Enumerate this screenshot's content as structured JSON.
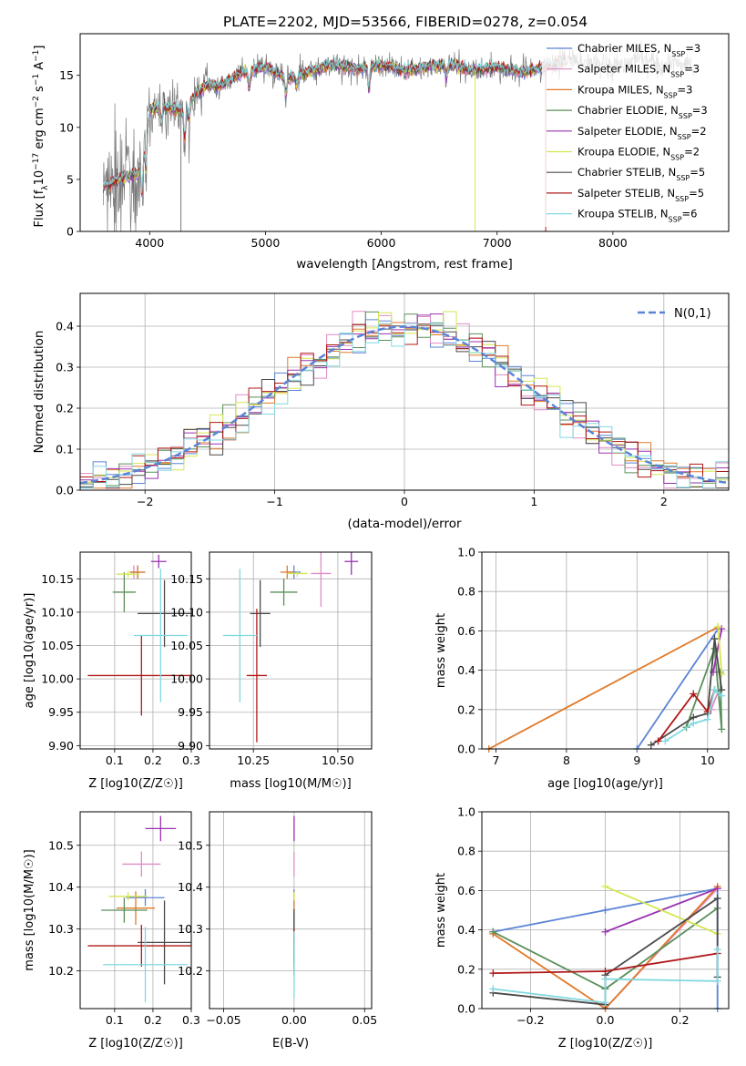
{
  "title": "PLATE=2202, MJD=53566, FIBERID=0278, z=0.054",
  "series_styles": [
    {
      "name": "Chabrier MILES",
      "nssp": "3",
      "color": "#5b84d6"
    },
    {
      "name": "Salpeter MILES",
      "nssp": "3",
      "color": "#e08cc4"
    },
    {
      "name": "Kroupa MILES",
      "nssp": "3",
      "color": "#e07a2a"
    },
    {
      "name": "Chabrier ELODIE",
      "nssp": "3",
      "color": "#5a8f5a"
    },
    {
      "name": "Salpeter ELODIE",
      "nssp": "2",
      "color": "#9a32b0"
    },
    {
      "name": "Kroupa ELODIE",
      "nssp": "2",
      "color": "#d6e650"
    },
    {
      "name": "Chabrier STELIB",
      "nssp": "5",
      "color": "#4a4a4a"
    },
    {
      "name": "Salpeter STELIB",
      "nssp": "5",
      "color": "#b01818"
    },
    {
      "name": "Kroupa STELIB",
      "nssp": "6",
      "color": "#80d8e0"
    }
  ],
  "chart_data": [
    {
      "id": "spectrum",
      "type": "line",
      "xlabel": "wavelength [Angstrom, rest frame]",
      "ylabel": "Flux [f_λ 10^-17 erg cm^-2 s^-1 A^-1]",
      "xlim": [
        3400,
        9000
      ],
      "ylim": [
        0,
        19
      ],
      "xticks": [
        4000,
        5000,
        6000,
        7000,
        8000
      ],
      "yticks": [
        0,
        5,
        10,
        15
      ],
      "data_color": "#777777",
      "data_xrange": [
        3600,
        8700
      ],
      "continuum": {
        "x": [
          3600,
          3700,
          3800,
          3900,
          3950,
          4000,
          4100,
          4200,
          4300,
          4400,
          4500,
          4600,
          4800,
          5000,
          5200,
          5400,
          5600,
          5800,
          6000,
          6200,
          6400,
          6600,
          6800,
          7000,
          7200,
          7400,
          7600,
          7800,
          8000,
          8200,
          8400,
          8600,
          8700
        ],
        "y": [
          4.2,
          4.8,
          5.3,
          5.6,
          7.8,
          11.6,
          12.0,
          11.8,
          11.4,
          13.3,
          14.1,
          13.9,
          15.2,
          15.8,
          14.6,
          15.5,
          16.0,
          15.6,
          16.0,
          15.5,
          15.8,
          16.0,
          15.4,
          15.8,
          15.3,
          15.7,
          16.4,
          16.2,
          15.8,
          16.6,
          16.2,
          16.0,
          15.8
        ]
      },
      "model_xrange": [
        3600,
        7600
      ],
      "absorption_features": [
        {
          "x": 3934,
          "depth": 4.0
        },
        {
          "x": 3969,
          "depth": 3.5
        },
        {
          "x": 4102,
          "depth": 1.5
        },
        {
          "x": 4304,
          "depth": 2.8
        },
        {
          "x": 4341,
          "depth": 1.5
        },
        {
          "x": 4861,
          "depth": 1.7
        },
        {
          "x": 5175,
          "depth": 1.8
        },
        {
          "x": 5270,
          "depth": 1.0
        },
        {
          "x": 5893,
          "depth": 2.5
        },
        {
          "x": 6563,
          "depth": 1.2
        }
      ],
      "data_gaps": [
        {
          "x": 4270,
          "floor": 0
        },
        {
          "x": 6810,
          "floor": 0,
          "color": "#d6e650"
        },
        {
          "x": 7420,
          "floor": 0,
          "color": "#b01818"
        }
      ]
    },
    {
      "id": "residuals",
      "type": "histogram",
      "xlabel": "(data-model)/error",
      "ylabel": "Normed distribution",
      "xlim": [
        -2.5,
        2.5
      ],
      "ylim": [
        0,
        0.48
      ],
      "xticks": [
        -2,
        -1,
        0,
        1,
        2
      ],
      "yticks": [
        0.0,
        0.1,
        0.2,
        0.3,
        0.4
      ],
      "legend": "N(0,1)",
      "bin_width": 0.1,
      "reference": {
        "type": "gaussian",
        "mean": 0,
        "sigma": 1,
        "color": "#5b84d6"
      }
    },
    {
      "id": "age-vs-Z",
      "type": "errorbar",
      "xlabel": "Z [log10(Z/Z☉)]",
      "ylabel": "age [log10(age/yr)]",
      "xlim": [
        0.01,
        0.3
      ],
      "ylim": [
        9.895,
        10.19
      ],
      "xticks": [
        0.1,
        0.2,
        0.3
      ],
      "yticks": [
        9.9,
        9.95,
        10.0,
        10.05,
        10.1,
        10.15
      ],
      "points": [
        {
          "x": 0.16,
          "y": 10.16,
          "xerr": 0.02,
          "yerr": 0.01
        },
        {
          "x": 0.15,
          "y": 10.16,
          "xerr": 0.01,
          "yerr": 0.01
        },
        {
          "x": 0.16,
          "y": 10.16,
          "xerr": 0.02,
          "yerr": 0.01
        },
        {
          "x": 0.125,
          "y": 10.13,
          "xerr": 0.03,
          "yerr": 0.03
        },
        {
          "x": 0.215,
          "y": 10.176,
          "xerr": 0.02,
          "yerr": 0.01
        },
        {
          "x": 0.135,
          "y": 10.157,
          "xerr": 0.03,
          "yerr": 0.005
        },
        {
          "x": 0.23,
          "y": 10.098,
          "xerr": 0.07,
          "yerr": 0.05
        },
        {
          "x": 0.17,
          "y": 10.005,
          "xerr": 0.14,
          "yerr": 0.06
        },
        {
          "x": 0.22,
          "y": 10.065,
          "xerr": 0.07,
          "yerr": 0.1
        }
      ]
    },
    {
      "id": "age-vs-mass",
      "type": "errorbar",
      "xlabel": "mass [log10(M/M☉)]",
      "ylabel": "",
      "xlim": [
        10.12,
        10.6
      ],
      "ylim": [
        9.895,
        10.19
      ],
      "xticks": [
        10.25,
        10.5
      ],
      "yticks": [
        9.9,
        9.95,
        10.0,
        10.05,
        10.1,
        10.15
      ],
      "points": [
        {
          "x": 10.37,
          "y": 10.16,
          "xerr": 0.02,
          "yerr": 0.01
        },
        {
          "x": 10.45,
          "y": 10.158,
          "xerr": 0.03,
          "yerr": 0.05
        },
        {
          "x": 10.35,
          "y": 10.16,
          "xerr": 0.02,
          "yerr": 0.01
        },
        {
          "x": 10.34,
          "y": 10.13,
          "xerr": 0.04,
          "yerr": 0.02
        },
        {
          "x": 10.54,
          "y": 10.176,
          "xerr": 0.02,
          "yerr": 0.02
        },
        {
          "x": 10.38,
          "y": 10.158,
          "xerr": 0.03,
          "yerr": 0.005
        },
        {
          "x": 10.27,
          "y": 10.098,
          "xerr": 0.03,
          "yerr": 0.05
        },
        {
          "x": 10.26,
          "y": 10.005,
          "xerr": 0.03,
          "yerr": 0.1
        },
        {
          "x": 10.21,
          "y": 10.065,
          "xerr": 0.05,
          "yerr": 0.1
        }
      ]
    },
    {
      "id": "weight-vs-age",
      "type": "line",
      "xlabel": "age [log10(age/yr)]",
      "ylabel": "mass weight",
      "xlim": [
        6.8,
        10.3
      ],
      "ylim": [
        0,
        1.0
      ],
      "xticks": [
        7,
        8,
        9,
        10
      ],
      "yticks": [
        0.0,
        0.2,
        0.4,
        0.6,
        0.8,
        1.0
      ],
      "series": [
        {
          "x": [
            9.0,
            10.15
          ],
          "y": [
            0.0,
            0.61
          ]
        },
        {
          "x": [
            10.05,
            10.15
          ],
          "y": [
            0.2,
            0.29
          ]
        },
        {
          "x": [
            6.9,
            10.15
          ],
          "y": [
            0.0,
            0.62
          ]
        },
        {
          "x": [
            9.7,
            10.1,
            10.2,
            10.18
          ],
          "y": [
            0.11,
            0.51,
            0.1,
            0.39
          ]
        },
        {
          "x": [
            10.08,
            10.2
          ],
          "y": [
            0.39,
            0.61
          ]
        },
        {
          "x": [
            10.15,
            10.2
          ],
          "y": [
            0.62,
            0.38
          ]
        },
        {
          "x": [
            9.2,
            9.8,
            10.0,
            10.1,
            10.2
          ],
          "y": [
            0.02,
            0.16,
            0.18,
            0.56,
            0.3
          ]
        },
        {
          "x": [
            9.3,
            9.8,
            10.0,
            10.1
          ],
          "y": [
            0.04,
            0.28,
            0.19,
            0.3
          ]
        },
        {
          "x": [
            9.4,
            9.8,
            10.0,
            10.1,
            10.2
          ],
          "y": [
            0.04,
            0.13,
            0.15,
            0.3,
            0.27
          ]
        }
      ]
    },
    {
      "id": "mass-vs-Z",
      "type": "errorbar",
      "xlabel": "Z [log10(Z/Z☉)]",
      "ylabel": "mass [log10(M/M☉)]",
      "xlim": [
        0.01,
        0.3
      ],
      "ylim": [
        10.11,
        10.58
      ],
      "xticks": [
        0.1,
        0.2,
        0.3
      ],
      "yticks": [
        10.2,
        10.3,
        10.4,
        10.5
      ],
      "points": [
        {
          "x": 0.18,
          "y": 10.375,
          "xerr": 0.05,
          "yerr": 0.02
        },
        {
          "x": 0.17,
          "y": 10.455,
          "xerr": 0.05,
          "yerr": 0.03
        },
        {
          "x": 0.155,
          "y": 10.35,
          "xerr": 0.05,
          "yerr": 0.04
        },
        {
          "x": 0.125,
          "y": 10.345,
          "xerr": 0.06,
          "yerr": 0.03
        },
        {
          "x": 0.22,
          "y": 10.54,
          "xerr": 0.04,
          "yerr": 0.03
        },
        {
          "x": 0.135,
          "y": 10.378,
          "xerr": 0.05,
          "yerr": 0.01
        },
        {
          "x": 0.23,
          "y": 10.268,
          "xerr": 0.07,
          "yerr": 0.1
        },
        {
          "x": 0.17,
          "y": 10.26,
          "xerr": 0.14,
          "yerr": 0.05
        },
        {
          "x": 0.18,
          "y": 10.215,
          "xerr": 0.11,
          "yerr": 0.09
        }
      ]
    },
    {
      "id": "mass-vs-EBV",
      "type": "errorbar",
      "xlabel": "E(B-V)",
      "ylabel": "",
      "xlim": [
        -0.06,
        0.055
      ],
      "ylim": [
        10.11,
        10.58
      ],
      "xticks": [
        -0.05,
        0.0,
        0.05
      ],
      "yticks": [
        10.2,
        10.3,
        10.4,
        10.5
      ],
      "points": [
        {
          "x": 0.0,
          "y": 10.375,
          "xerr": 0,
          "yerr": 0.02
        },
        {
          "x": 0.0,
          "y": 10.455,
          "xerr": 0,
          "yerr": 0.03
        },
        {
          "x": 0.0,
          "y": 10.35,
          "xerr": 0,
          "yerr": 0.04
        },
        {
          "x": 0.0,
          "y": 10.3,
          "xerr": 0,
          "yerr": 0.04
        },
        {
          "x": 0.0,
          "y": 10.54,
          "xerr": 0,
          "yerr": 0.03
        },
        {
          "x": 0.0,
          "y": 10.378,
          "xerr": 0,
          "yerr": 0.01
        },
        {
          "x": 0.0,
          "y": 10.268,
          "xerr": 0,
          "yerr": 0.08
        },
        {
          "x": 0.0,
          "y": 10.26,
          "xerr": 0,
          "yerr": 0.04
        },
        {
          "x": 0.0,
          "y": 10.215,
          "xerr": 0,
          "yerr": 0.08
        }
      ]
    },
    {
      "id": "weight-vs-Z",
      "type": "line",
      "xlabel": "Z [log10(Z/Z☉)]",
      "ylabel": "mass weight",
      "xlim": [
        -0.33,
        0.33
      ],
      "ylim": [
        0,
        1.0
      ],
      "xticks": [
        -0.2,
        0.0,
        0.2
      ],
      "yticks": [
        0.0,
        0.2,
        0.4,
        0.6,
        0.8,
        1.0
      ],
      "series": [
        {
          "x": [
            -0.3,
            0.0,
            0.3,
            0.3
          ],
          "y": [
            0.39,
            0.5,
            0.61,
            0.0
          ]
        },
        {
          "x": [
            0.0,
            0.3
          ],
          "y": [
            0.0,
            0.61
          ]
        },
        {
          "x": [
            -0.3,
            0.0,
            0.3
          ],
          "y": [
            0.38,
            0.0,
            0.62
          ]
        },
        {
          "x": [
            -0.3,
            0.0,
            0.3
          ],
          "y": [
            0.39,
            0.1,
            0.51
          ]
        },
        {
          "x": [
            0.0,
            0.3
          ],
          "y": [
            0.39,
            0.61
          ]
        },
        {
          "x": [
            0.0,
            0.3
          ],
          "y": [
            0.62,
            0.38
          ]
        },
        {
          "x": [
            -0.3,
            0.0,
            0.0,
            0.3,
            0.3
          ],
          "y": [
            0.08,
            0.02,
            0.17,
            0.56,
            0.16
          ]
        },
        {
          "x": [
            -0.3,
            0.0,
            0.3
          ],
          "y": [
            0.18,
            0.19,
            0.28
          ]
        },
        {
          "x": [
            -0.3,
            0.0,
            0.0,
            0.3,
            0.3
          ],
          "y": [
            0.1,
            0.03,
            0.15,
            0.14,
            0.3
          ]
        }
      ]
    }
  ]
}
